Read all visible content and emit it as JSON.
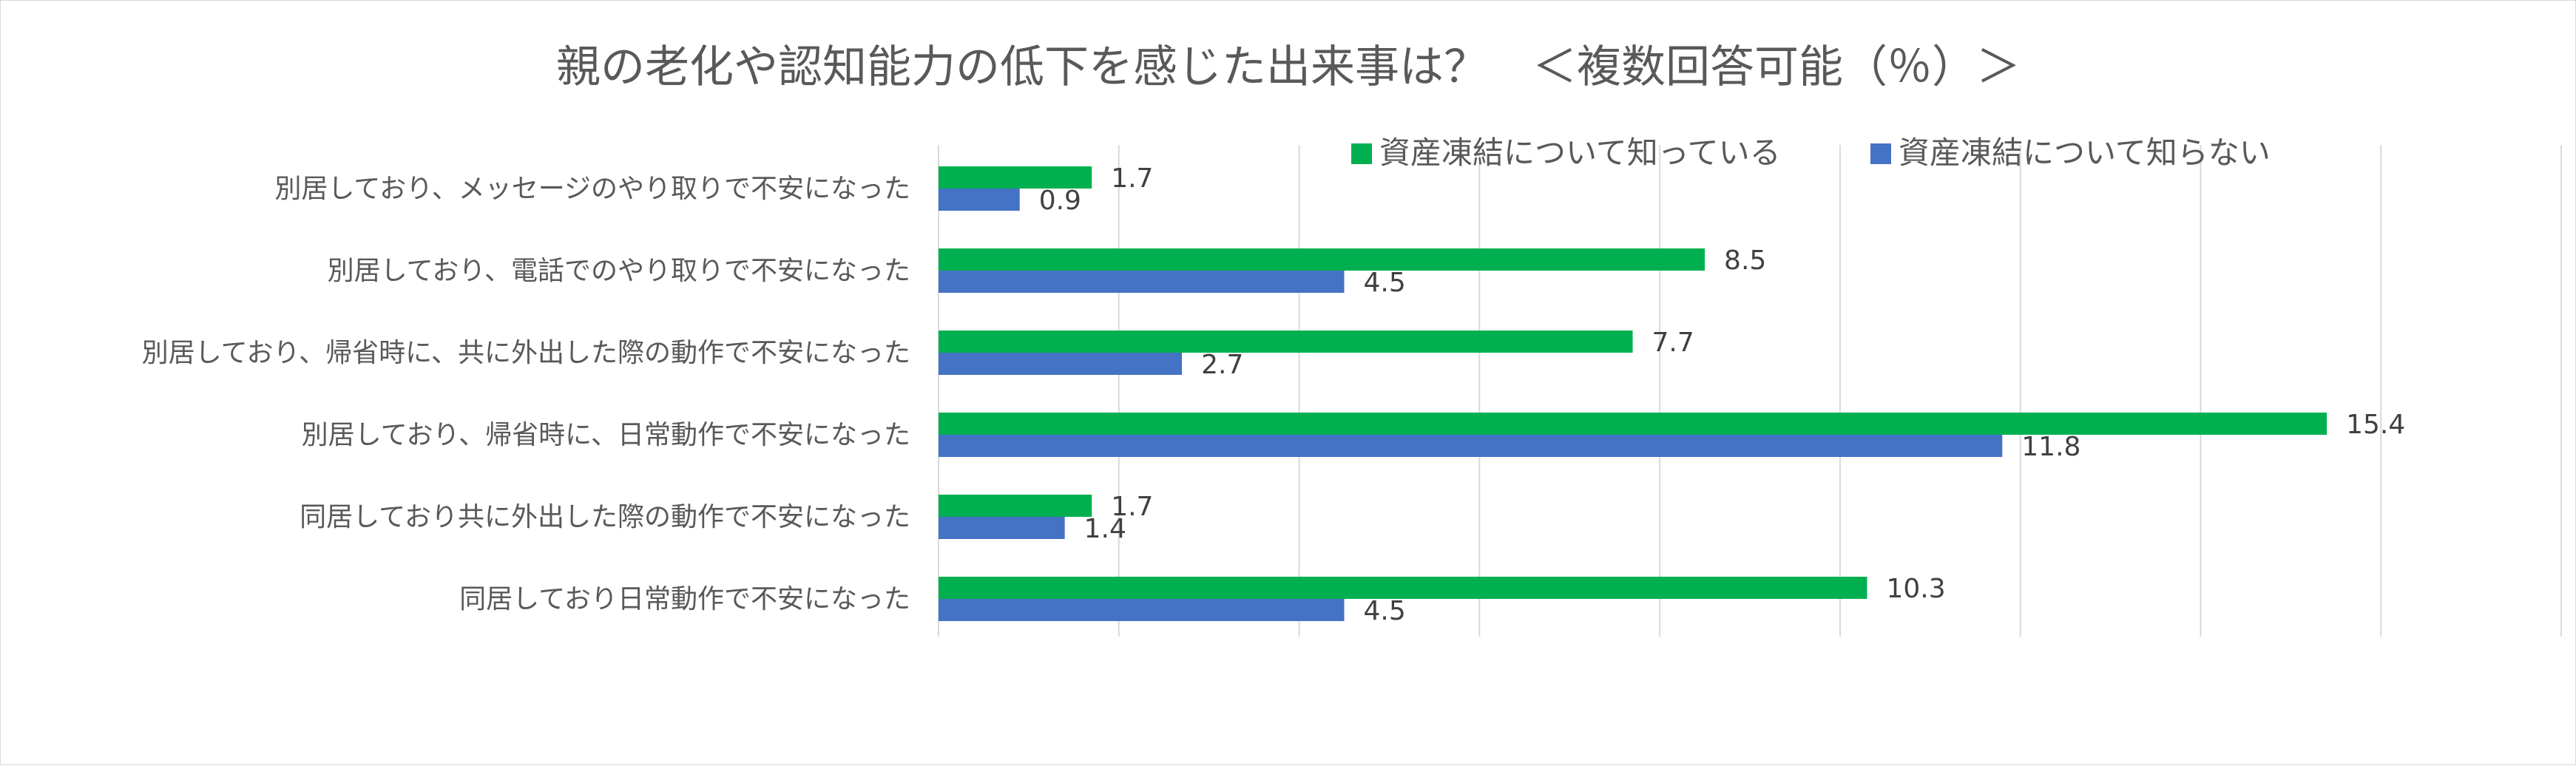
{
  "chart_data": {
    "type": "bar",
    "orientation": "horizontal",
    "title": "親の老化や認知能力の低下を感じた出来事は？　＜複数回答可能（％）＞",
    "categories": [
      "別居しており、メッセージのやり取りで不安になった",
      "別居しており、電話でのやり取りで不安になった",
      "別居しており、帰省時に、共に外出した際の動作で不安になった",
      "別居しており、帰省時に、日常動作で不安になった",
      "同居しており共に外出した際の動作で不安になった",
      "同居しており日常動作で不安になった"
    ],
    "series": [
      {
        "name": "資産凍結について知っている",
        "color": "#00B050",
        "values": [
          1.7,
          8.5,
          7.7,
          15.4,
          1.7,
          10.3
        ]
      },
      {
        "name": "資産凍結について知らない",
        "color": "#4472C4",
        "values": [
          0.9,
          4.5,
          2.7,
          11.8,
          1.4,
          4.5
        ]
      }
    ],
    "xlim": [
      0,
      18
    ],
    "x_grid_step": 2,
    "grid": true,
    "axis_tick_labels_shown": false,
    "data_labels_shown": true,
    "legend_position": "top-right",
    "xlabel": "",
    "ylabel": ""
  }
}
